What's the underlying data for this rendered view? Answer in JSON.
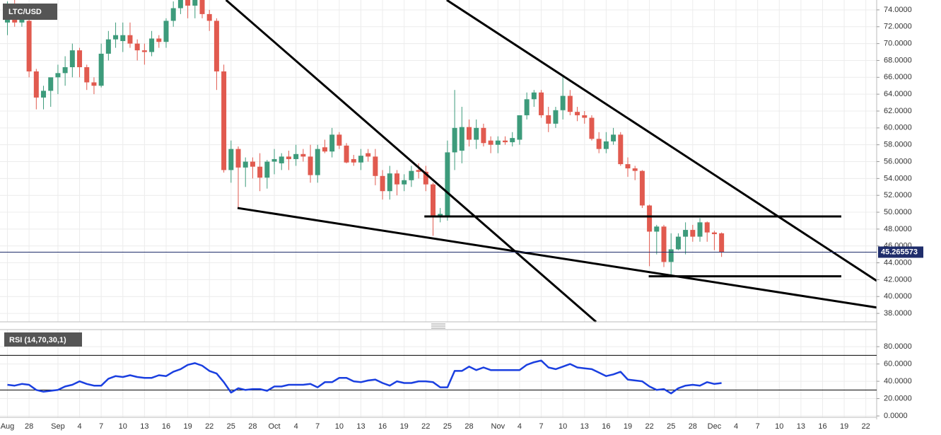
{
  "chart_data": {
    "type": "candlestick",
    "title": "LTC/USD",
    "x": [
      0,
      1,
      2,
      3,
      4,
      5,
      6,
      7,
      8,
      9,
      10,
      11,
      12,
      13,
      14,
      15,
      16,
      17,
      18,
      19,
      20,
      21,
      22,
      23,
      24,
      25,
      26,
      27,
      28,
      29,
      30,
      31,
      32,
      33,
      34,
      35,
      36,
      37,
      38,
      39,
      40,
      41,
      42,
      43,
      44,
      45,
      46,
      47,
      48,
      49,
      50,
      51,
      52,
      53,
      54,
      55,
      56,
      57,
      58,
      59,
      60,
      61,
      62,
      63,
      64,
      65,
      66,
      67,
      68,
      69,
      70,
      71,
      72,
      73,
      74,
      75,
      76,
      77,
      78,
      79,
      80,
      81,
      82,
      83,
      84,
      85,
      86,
      87,
      88,
      89,
      90,
      91,
      92,
      93,
      94,
      95,
      96,
      97,
      98,
      99
    ],
    "open": [
      72.5,
      74,
      72.5,
      72.7,
      66.7,
      63.6,
      64.4,
      66,
      66.5,
      67.2,
      69.2,
      67.2,
      65.4,
      65,
      68.8,
      70.5,
      70.3,
      71,
      70,
      69.2,
      69,
      70.6,
      70.2,
      72.7,
      74.2,
      75.2,
      74.5,
      75.5,
      73.5,
      72.7,
      66.7,
      55,
      57.5,
      55.3,
      56,
      55.4,
      54.1,
      56,
      55.8,
      56.6,
      56.3,
      56.9,
      56.6,
      54.4,
      57.7,
      57.2,
      59.2,
      57.9,
      56.3,
      55.9,
      57,
      56.6,
      54.3,
      52.5,
      54.6,
      53.3,
      53.8,
      55,
      54.8,
      53.3,
      49.5,
      49.5,
      57.1,
      57.3,
      60.1,
      58.6,
      60,
      58.5,
      58,
      58.5,
      58.3,
      58.6,
      61.5,
      63.4,
      64.2,
      61.5,
      60.5,
      62.1,
      63.8,
      61.9,
      61.5,
      61.2,
      58.7,
      57.5,
      58.4,
      59.2,
      55.7,
      55.2,
      54.9,
      50.8,
      47.7,
      48.3,
      44.1,
      45.6,
      47.1,
      47.9,
      47.1,
      48.8,
      47.6,
      47.5
    ],
    "high": [
      75,
      75.5,
      74.5,
      73.5,
      67,
      65,
      65.8,
      67.5,
      68.5,
      70,
      69.5,
      67.5,
      66,
      70,
      71.5,
      72.5,
      72.5,
      72.5,
      70.5,
      70,
      71.5,
      71,
      73,
      75,
      76,
      77,
      76,
      76.5,
      74,
      73,
      67.5,
      58.5,
      57.8,
      56.5,
      56.5,
      57,
      56.2,
      57.5,
      57,
      57.3,
      58,
      57.5,
      58,
      58,
      58.6,
      60,
      59.5,
      58.2,
      56.8,
      57.5,
      57.5,
      57.5,
      55,
      55.5,
      55,
      54.5,
      55.5,
      55.8,
      55.5,
      53.5,
      50.5,
      58.5,
      64.5,
      62.5,
      61,
      61,
      60.5,
      59,
      59,
      59,
      59.5,
      61.5,
      64.2,
      64.5,
      64.5,
      62.5,
      62.5,
      66.3,
      64.5,
      62.5,
      62,
      61.5,
      59.5,
      59.5,
      60,
      59.5,
      56.5,
      55.5,
      55,
      50.9,
      48.5,
      48.5,
      47.5,
      47.5,
      48.8,
      48.5,
      49.3,
      48.9,
      47.8,
      47.6
    ],
    "low": [
      71,
      72,
      72,
      66,
      62.2,
      62.2,
      62.5,
      64,
      65,
      66,
      66,
      64.5,
      64,
      64.8,
      68,
      69.5,
      69,
      69.5,
      68,
      67.5,
      68.5,
      69.5,
      69.5,
      72,
      73.5,
      73,
      73,
      73,
      71.5,
      64.5,
      54.7,
      53.5,
      50.4,
      53,
      54,
      52.5,
      52.8,
      54.5,
      55,
      55,
      55.5,
      56,
      53.5,
      53.5,
      57,
      56.5,
      57.5,
      55.8,
      55.5,
      55,
      56,
      53.2,
      51.5,
      51.5,
      52,
      52.5,
      53,
      54,
      52.5,
      47.2,
      48.8,
      49,
      55,
      55.8,
      57.8,
      57.5,
      57.8,
      57,
      57,
      58,
      57.8,
      58,
      61,
      62.5,
      61.2,
      59.5,
      60,
      61,
      61.5,
      60.8,
      60.5,
      58.5,
      57,
      57,
      58,
      55.5,
      54.2,
      53.8,
      50.5,
      43.6,
      45,
      43.5,
      42.5,
      45.5,
      45,
      46.5,
      46.5,
      46.5,
      45.5,
      44.7
    ],
    "close": [
      74,
      72.5,
      74,
      66.7,
      63.6,
      64.4,
      66,
      66.5,
      67.2,
      69.2,
      67.2,
      65.4,
      65,
      68.8,
      70.5,
      71,
      71,
      70,
      69.2,
      69,
      70.6,
      70.2,
      72.7,
      74.2,
      75.2,
      74.5,
      75.5,
      73.5,
      72.7,
      66.7,
      55,
      57.5,
      55.3,
      56,
      55.4,
      54.1,
      56,
      56.3,
      56.6,
      56.3,
      56.9,
      56.6,
      54.4,
      57.5,
      57.2,
      59.2,
      57.9,
      55.9,
      55.9,
      56.7,
      56.6,
      54.3,
      52.5,
      54.6,
      53.3,
      53.8,
      54.9,
      54.8,
      53.3,
      49.5,
      49.8,
      57.1,
      60,
      60.1,
      58.6,
      60,
      58.2,
      58,
      58.5,
      58.3,
      58.8,
      61.5,
      63.4,
      64.2,
      61.5,
      60.5,
      62.1,
      63.8,
      61.9,
      61.5,
      61.2,
      58.7,
      57.5,
      58.4,
      59.2,
      55.7,
      55.2,
      54.9,
      50.8,
      47.7,
      48.3,
      44.1,
      45.6,
      47.1,
      47.9,
      47.1,
      48.8,
      47.6,
      47.4,
      45.265573
    ],
    "up_color": "#3d9b7b",
    "down_color": "#e15a4f",
    "last_price": 45.265573,
    "xlim": [
      -1.03,
      120.5
    ],
    "xticks": [
      {
        "value": 0,
        "label": "Aug"
      },
      {
        "value": 3,
        "label": "28"
      },
      {
        "value": 7,
        "label": "Sep"
      },
      {
        "value": 10,
        "label": "4"
      },
      {
        "value": 13,
        "label": "7"
      },
      {
        "value": 16,
        "label": "10"
      },
      {
        "value": 19,
        "label": "13"
      },
      {
        "value": 22,
        "label": "16"
      },
      {
        "value": 25,
        "label": "19"
      },
      {
        "value": 28,
        "label": "22"
      },
      {
        "value": 31,
        "label": "25"
      },
      {
        "value": 34,
        "label": "28"
      },
      {
        "value": 37,
        "label": "Oct"
      },
      {
        "value": 40,
        "label": "4"
      },
      {
        "value": 43,
        "label": "7"
      },
      {
        "value": 46,
        "label": "10"
      },
      {
        "value": 49,
        "label": "13"
      },
      {
        "value": 52,
        "label": "16"
      },
      {
        "value": 55,
        "label": "19"
      },
      {
        "value": 58,
        "label": "22"
      },
      {
        "value": 61,
        "label": "25"
      },
      {
        "value": 64,
        "label": "28"
      },
      {
        "value": 68,
        "label": "Nov"
      },
      {
        "value": 71,
        "label": "4"
      },
      {
        "value": 74,
        "label": "7"
      },
      {
        "value": 77,
        "label": "10"
      },
      {
        "value": 80,
        "label": "13"
      },
      {
        "value": 83,
        "label": "16"
      },
      {
        "value": 86,
        "label": "19"
      },
      {
        "value": 89,
        "label": "22"
      },
      {
        "value": 92,
        "label": "25"
      },
      {
        "value": 95,
        "label": "28"
      },
      {
        "value": 98,
        "label": "Dec"
      },
      {
        "value": 101,
        "label": "4"
      },
      {
        "value": 104,
        "label": "7"
      },
      {
        "value": 107,
        "label": "10"
      },
      {
        "value": 110,
        "label": "13"
      },
      {
        "value": 113,
        "label": "16"
      },
      {
        "value": 116,
        "label": "19"
      },
      {
        "value": 119,
        "label": "22"
      }
    ],
    "ylim": [
      37.0,
      75.17
    ],
    "yticks": [
      {
        "value": 38,
        "label": "38.0000"
      },
      {
        "value": 40,
        "label": "40.0000"
      },
      {
        "value": 42,
        "label": "42.0000"
      },
      {
        "value": 44,
        "label": "44.0000"
      },
      {
        "value": 46,
        "label": "46.0000"
      },
      {
        "value": 48,
        "label": "48.0000"
      },
      {
        "value": 50,
        "label": "50.0000"
      },
      {
        "value": 52,
        "label": "52.0000"
      },
      {
        "value": 54,
        "label": "54.0000"
      },
      {
        "value": 56,
        "label": "56.0000"
      },
      {
        "value": 58,
        "label": "58.0000"
      },
      {
        "value": 60,
        "label": "60.0000"
      },
      {
        "value": 62,
        "label": "62.0000"
      },
      {
        "value": 64,
        "label": "64.0000"
      },
      {
        "value": 66,
        "label": "66.0000"
      },
      {
        "value": 68,
        "label": "68.0000"
      },
      {
        "value": 70,
        "label": "70.0000"
      },
      {
        "value": 72,
        "label": "72.0000"
      },
      {
        "value": 74,
        "label": "74.0000"
      }
    ],
    "grid": true,
    "trendlines": [
      {
        "x": [
          30.3,
          81.6
        ],
        "y": [
          75.17,
          37.0
        ]
      },
      {
        "x": [
          60.9,
          120.5
        ],
        "y": [
          75.17,
          41.87
        ]
      },
      {
        "x": [
          31.9,
          120.5
        ],
        "y": [
          50.5,
          38.7
        ]
      },
      {
        "x": [
          57.8,
          115.6
        ],
        "y": [
          49.5,
          49.5
        ]
      },
      {
        "x": [
          88.9,
          115.6
        ],
        "y": [
          42.4,
          42.4
        ]
      }
    ],
    "rsi": {
      "title": "RSI (14,70,30,1)",
      "color": "#1a3fe0",
      "values": [
        36,
        35,
        37,
        36,
        30,
        28,
        29,
        30,
        34,
        36,
        40,
        37,
        35,
        35,
        43,
        46,
        45,
        47,
        45,
        44,
        44,
        47,
        46,
        51,
        54,
        59,
        61,
        58,
        52,
        49,
        39,
        27,
        32,
        30,
        31,
        31,
        29,
        34,
        34,
        36,
        36,
        36,
        37,
        33,
        39,
        39,
        44,
        44,
        40,
        39,
        41,
        42,
        38,
        35,
        40,
        38,
        38,
        40,
        40,
        39,
        33,
        33,
        52,
        52,
        57,
        53,
        56,
        53,
        53,
        53,
        53,
        53,
        59,
        62,
        64,
        56,
        54,
        57,
        60,
        56,
        55,
        54,
        50,
        46,
        48,
        51,
        42,
        41,
        40,
        34,
        30,
        31,
        26,
        32,
        35,
        36,
        35,
        39,
        37,
        38
      ],
      "ylim": [
        -1.6,
        99.7
      ],
      "yticks": [
        {
          "value": 0,
          "label": "0.0000"
        },
        {
          "value": 20,
          "label": "20.0000"
        },
        {
          "value": 40,
          "label": "40.0000"
        },
        {
          "value": 60,
          "label": "60.0000"
        },
        {
          "value": 80,
          "label": "80.0000"
        }
      ],
      "levels": [
        70,
        30
      ]
    }
  }
}
